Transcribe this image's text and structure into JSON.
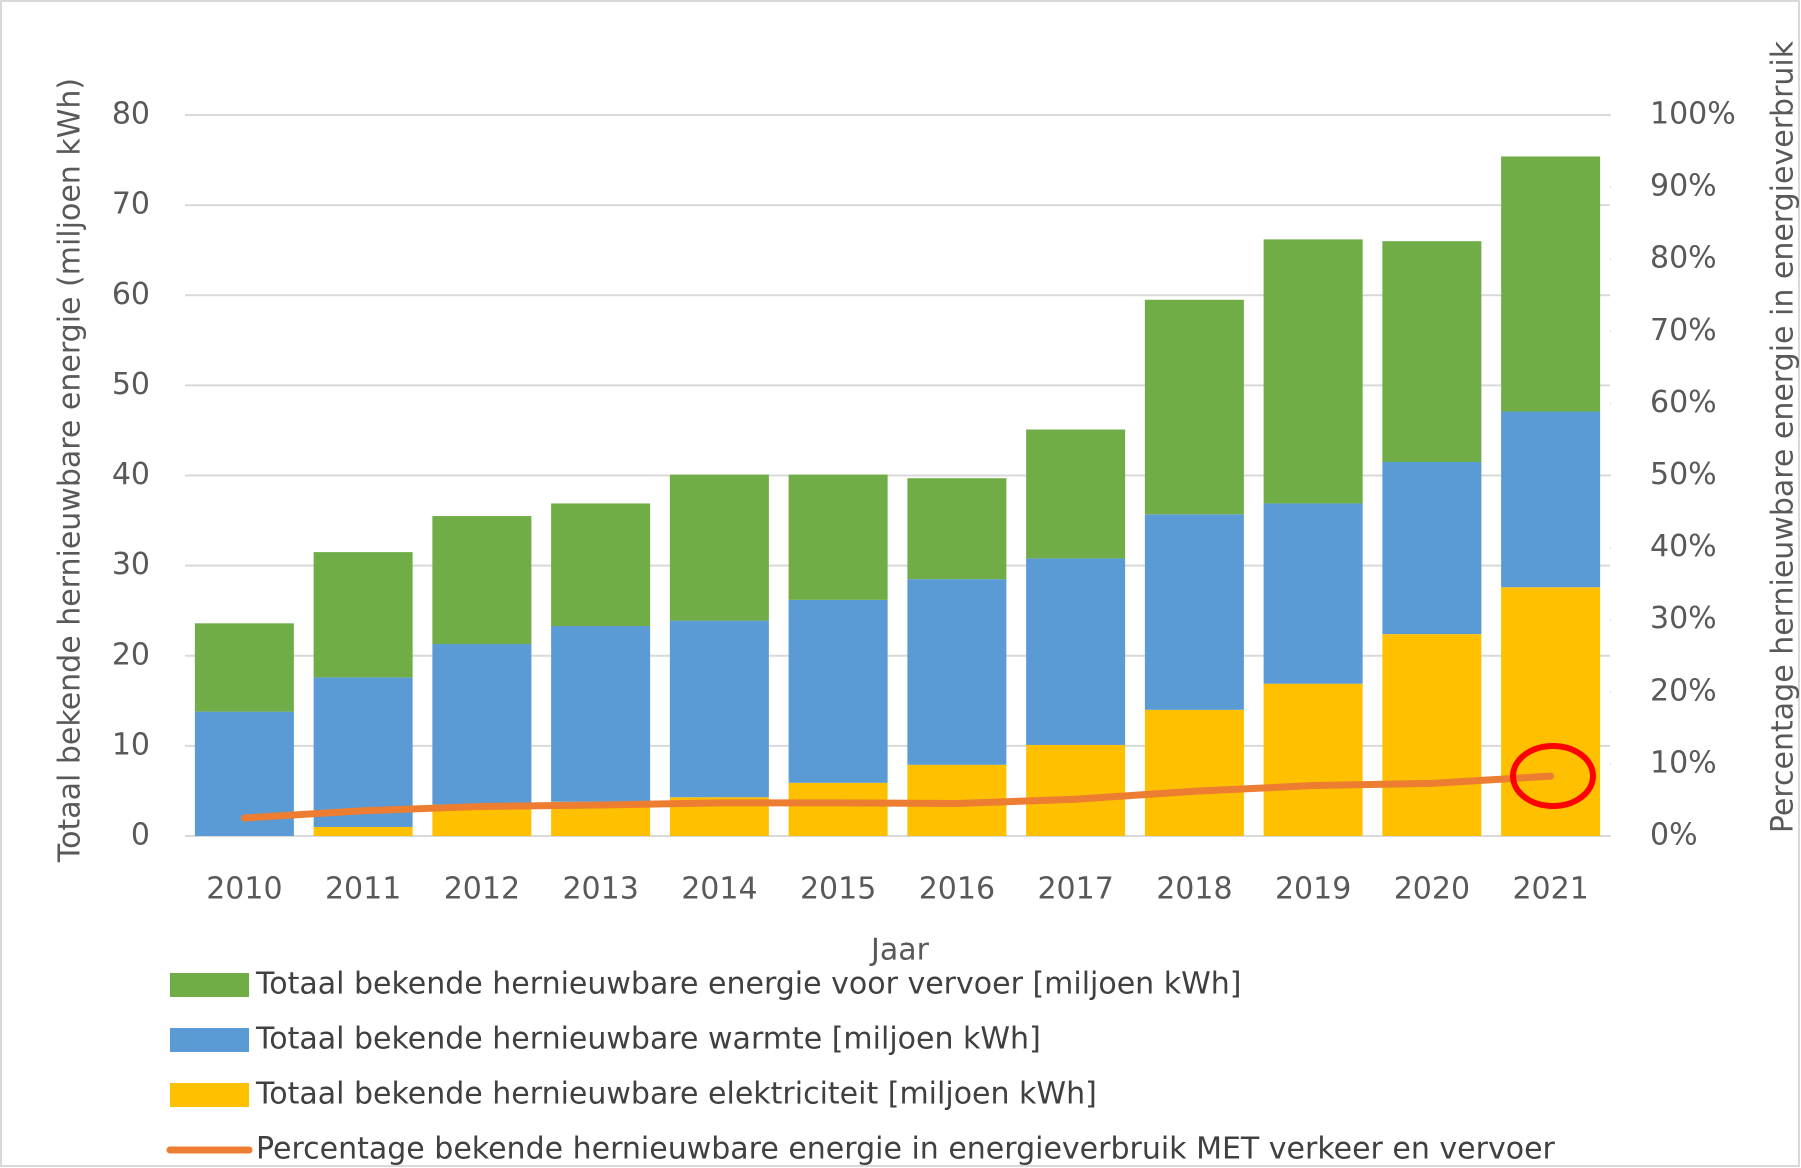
{
  "chart_data": {
    "type": "bar",
    "categories": [
      "2010",
      "2011",
      "2012",
      "2013",
      "2014",
      "2015",
      "2016",
      "2017",
      "2018",
      "2019",
      "2020",
      "2021"
    ],
    "series": [
      {
        "name": "Totaal bekende hernieuwbare elektriciteit [miljoen kWh]",
        "color": "#ffc000",
        "values": [
          0,
          1.0,
          3.5,
          3.8,
          4.3,
          5.9,
          7.9,
          10.1,
          14.0,
          16.9,
          22.4,
          27.6
        ]
      },
      {
        "name": "Totaal bekende hernieuwbare warmte [miljoen kWh]",
        "color": "#5b9bd5",
        "values": [
          13.8,
          16.6,
          17.8,
          19.5,
          19.6,
          20.3,
          20.6,
          20.7,
          21.7,
          20.0,
          19.1,
          19.5
        ]
      },
      {
        "name": "Totaal bekende hernieuwbare energie voor vervoer [miljoen kWh]",
        "color": "#70ad47",
        "values": [
          9.8,
          13.9,
          14.2,
          13.6,
          16.2,
          13.9,
          11.2,
          14.3,
          23.8,
          29.3,
          24.5,
          28.3
        ]
      },
      {
        "name": "Percentage bekende hernieuwbare energie in energieverbruik MET verkeer en vervoer",
        "color": "#ed7d31",
        "type": "line",
        "axis": "y2",
        "values": [
          2.5,
          3.5,
          4.1,
          4.3,
          4.6,
          4.6,
          4.5,
          5.1,
          6.2,
          7.0,
          7.3,
          8.3
        ]
      }
    ],
    "stacked": true,
    "xlabel": "Jaar",
    "ylabel": "Totaal bekende hernieuwbare energie (miljoen kWh)",
    "y2label": "Percentage hernieuwbare energie in energieverbruik",
    "ylim": [
      0,
      80
    ],
    "yticks": [
      0,
      10,
      20,
      30,
      40,
      50,
      60,
      70,
      80
    ],
    "y2lim": [
      0,
      100
    ],
    "y2ticks": [
      {
        "value": 0,
        "label": "0%"
      },
      {
        "value": 10,
        "label": "10%"
      },
      {
        "value": 20,
        "label": "20%"
      },
      {
        "value": 30,
        "label": "30%"
      },
      {
        "value": 40,
        "label": "40%"
      },
      {
        "value": 50,
        "label": "50%"
      },
      {
        "value": 60,
        "label": "60%"
      },
      {
        "value": 70,
        "label": "70%"
      },
      {
        "value": 80,
        "label": "80%"
      },
      {
        "value": 90,
        "label": "90%"
      },
      {
        "value": 100,
        "label": "100%"
      }
    ],
    "grid": true,
    "legend": "bottom"
  }
}
